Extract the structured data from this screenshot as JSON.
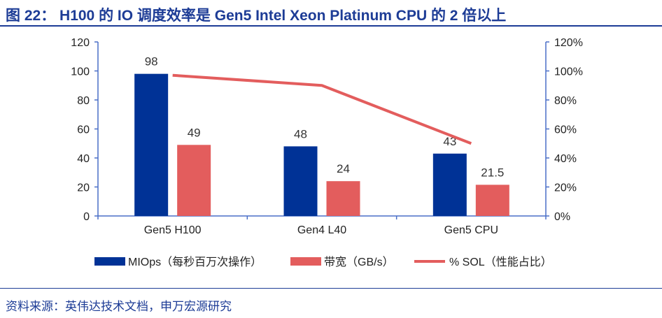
{
  "title": "图 22：  H100 的 IO 调度效率是 Gen5 Intel Xeon Platinum CPU 的 2 倍以上",
  "source": "资料来源：英伟达技术文档，申万宏源研究",
  "colors": {
    "blue": "#003296",
    "red": "#e35d5d",
    "axis": "#4a6fc7",
    "title": "#1d3c96"
  },
  "chart_data": {
    "type": "bar",
    "categories": [
      "Gen5 H100",
      "Gen4 L40",
      "Gen5 CPU"
    ],
    "series": [
      {
        "name": "MIOps（每秒百万次操作）",
        "type": "bar",
        "axis": "left",
        "values": [
          98,
          48,
          43
        ],
        "labels": [
          "98",
          "48",
          "43"
        ]
      },
      {
        "name": "带宽（GB/s）",
        "type": "bar",
        "axis": "left",
        "values": [
          49,
          24,
          21.5
        ],
        "labels": [
          "49",
          "24",
          "21.5"
        ]
      },
      {
        "name": "% SOL（性能占比）",
        "type": "line",
        "axis": "right",
        "values": [
          97,
          90,
          50
        ]
      }
    ],
    "ylim": [
      0,
      120
    ],
    "yticks": [
      "0",
      "20",
      "40",
      "60",
      "80",
      "100",
      "120"
    ],
    "y2lim": [
      0,
      120
    ],
    "y2ticks": [
      "0%",
      "20%",
      "40%",
      "60%",
      "80%",
      "100%",
      "120%"
    ],
    "legend": "bottom",
    "grid": false
  }
}
